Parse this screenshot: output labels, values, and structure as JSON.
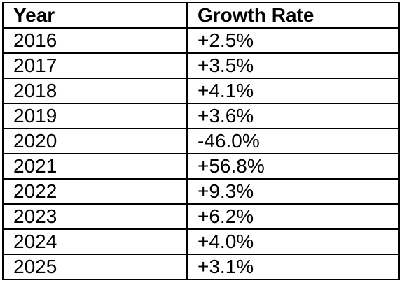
{
  "table": {
    "headers": [
      "Year",
      "Growth Rate"
    ],
    "rows": [
      [
        "2016",
        "+2.5%"
      ],
      [
        "2017",
        "+3.5%"
      ],
      [
        "2018",
        "+4.1%"
      ],
      [
        "2019",
        "+3.6%"
      ],
      [
        "2020",
        "-46.0%"
      ],
      [
        "2021",
        "+56.8%"
      ],
      [
        "2022",
        "+9.3%"
      ],
      [
        "2023",
        "+6.2%"
      ],
      [
        "2024",
        "+4.0%"
      ],
      [
        "2025",
        "+3.1%"
      ]
    ]
  }
}
